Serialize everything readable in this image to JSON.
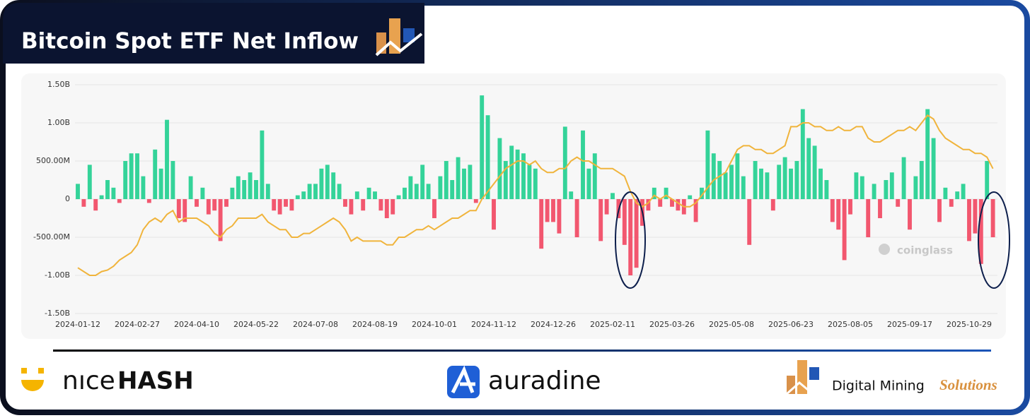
{
  "chart_data": {
    "type": "bar",
    "title": "Bitcoin Spot ETF Net Inflow",
    "watermark": "coinglass",
    "categories": [
      "2024-01-12",
      null,
      null,
      null,
      null,
      null,
      null,
      null,
      null,
      null,
      "2024-02-27",
      null,
      null,
      null,
      null,
      null,
      null,
      null,
      null,
      null,
      "2024-04-10",
      null,
      null,
      null,
      null,
      null,
      null,
      null,
      null,
      null,
      "2024-05-22",
      null,
      null,
      null,
      null,
      null,
      null,
      null,
      null,
      null,
      "2024-07-08",
      null,
      null,
      null,
      null,
      null,
      null,
      null,
      null,
      null,
      "2024-08-19",
      null,
      null,
      null,
      null,
      null,
      null,
      null,
      null,
      null,
      "2024-10-01",
      null,
      null,
      null,
      null,
      null,
      null,
      null,
      null,
      null,
      "2024-11-12",
      null,
      null,
      null,
      null,
      null,
      null,
      null,
      null,
      null,
      "2024-12-26",
      null,
      null,
      null,
      null,
      null,
      null,
      null,
      null,
      null,
      "2025-02-11",
      null,
      null,
      null,
      null,
      null,
      null,
      null,
      null,
      null,
      "2025-03-26",
      null,
      null,
      null,
      null,
      null,
      null,
      null,
      null,
      null,
      "2025-05-08",
      null,
      null,
      null,
      null,
      null,
      null,
      null,
      null,
      null,
      "2025-06-23",
      null,
      null,
      null,
      null,
      null,
      null,
      null,
      null,
      null,
      "2025-08-05",
      null,
      null,
      null,
      null,
      null,
      null,
      null,
      null,
      null,
      "2025-09-17",
      null,
      null,
      null,
      null,
      null,
      null,
      null,
      null,
      null,
      "2025-10-29",
      null,
      null,
      null,
      null
    ],
    "series": [
      {
        "type": "bar",
        "color": "#34d399",
        "negative_color": "#f2576f",
        "values": [
          200000000,
          -100000000,
          450000000,
          -150000000,
          50000000,
          250000000,
          150000000,
          -50000000,
          500000000,
          600000000,
          600000000,
          300000000,
          -50000000,
          650000000,
          400000000,
          1040000000,
          500000000,
          -250000000,
          -300000000,
          300000000,
          -100000000,
          150000000,
          -200000000,
          -150000000,
          -550000000,
          -100000000,
          150000000,
          300000000,
          250000000,
          350000000,
          250000000,
          900000000,
          200000000,
          -150000000,
          -200000000,
          -100000000,
          -150000000,
          50000000,
          100000000,
          200000000,
          200000000,
          400000000,
          450000000,
          350000000,
          200000000,
          -100000000,
          -200000000,
          100000000,
          -150000000,
          150000000,
          100000000,
          -150000000,
          -250000000,
          -200000000,
          50000000,
          150000000,
          300000000,
          200000000,
          450000000,
          200000000,
          -250000000,
          300000000,
          500000000,
          250000000,
          550000000,
          400000000,
          450000000,
          -50000000,
          1360000000,
          1100000000,
          -400000000,
          800000000,
          500000000,
          700000000,
          650000000,
          600000000,
          450000000,
          400000000,
          -650000000,
          -300000000,
          -300000000,
          -450000000,
          950000000,
          100000000,
          -500000000,
          900000000,
          400000000,
          600000000,
          -550000000,
          -200000000,
          80000000,
          -250000000,
          -600000000,
          -1000000000,
          -900000000,
          -350000000,
          -150000000,
          150000000,
          -100000000,
          150000000,
          -100000000,
          -150000000,
          -200000000,
          50000000,
          -300000000,
          150000000,
          900000000,
          600000000,
          500000000,
          350000000,
          450000000,
          600000000,
          300000000,
          -600000000,
          500000000,
          400000000,
          350000000,
          -150000000,
          450000000,
          550000000,
          400000000,
          500000000,
          1180000000,
          800000000,
          700000000,
          400000000,
          250000000,
          -300000000,
          -400000000,
          -800000000,
          -200000000,
          350000000,
          300000000,
          -500000000,
          200000000,
          -250000000,
          250000000,
          350000000,
          -100000000,
          550000000,
          -400000000,
          300000000,
          500000000,
          1180000000,
          800000000,
          -300000000,
          150000000,
          -100000000,
          100000000,
          200000000,
          -550000000,
          -450000000,
          -850000000,
          500000000,
          -500000000
        ]
      },
      {
        "type": "line",
        "color": "#f0b43c",
        "values": [
          -900000000,
          -950000000,
          -1000000000,
          -1000000000,
          -950000000,
          -930000000,
          -880000000,
          -800000000,
          -750000000,
          -700000000,
          -600000000,
          -400000000,
          -300000000,
          -250000000,
          -300000000,
          -200000000,
          -150000000,
          -300000000,
          -250000000,
          -250000000,
          -250000000,
          -300000000,
          -350000000,
          -450000000,
          -500000000,
          -400000000,
          -350000000,
          -250000000,
          -250000000,
          -250000000,
          -250000000,
          -200000000,
          -300000000,
          -350000000,
          -400000000,
          -400000000,
          -500000000,
          -500000000,
          -450000000,
          -450000000,
          -400000000,
          -350000000,
          -300000000,
          -250000000,
          -300000000,
          -400000000,
          -550000000,
          -500000000,
          -550000000,
          -550000000,
          -550000000,
          -550000000,
          -600000000,
          -600000000,
          -500000000,
          -500000000,
          -450000000,
          -400000000,
          -400000000,
          -350000000,
          -400000000,
          -350000000,
          -300000000,
          -250000000,
          -250000000,
          -200000000,
          -150000000,
          -150000000,
          0,
          100000000,
          200000000,
          300000000,
          400000000,
          450000000,
          500000000,
          500000000,
          450000000,
          500000000,
          400000000,
          350000000,
          350000000,
          400000000,
          400000000,
          500000000,
          550000000,
          500000000,
          500000000,
          450000000,
          400000000,
          400000000,
          400000000,
          350000000,
          300000000,
          100000000,
          -50000000,
          -100000000,
          -50000000,
          50000000,
          0,
          50000000,
          0,
          -50000000,
          -100000000,
          -100000000,
          -50000000,
          50000000,
          150000000,
          250000000,
          300000000,
          350000000,
          500000000,
          650000000,
          700000000,
          700000000,
          650000000,
          650000000,
          600000000,
          600000000,
          650000000,
          700000000,
          950000000,
          950000000,
          1000000000,
          1000000000,
          950000000,
          950000000,
          900000000,
          900000000,
          950000000,
          900000000,
          900000000,
          950000000,
          950000000,
          800000000,
          750000000,
          750000000,
          800000000,
          850000000,
          900000000,
          900000000,
          950000000,
          900000000,
          1000000000,
          1100000000,
          1050000000,
          900000000,
          800000000,
          750000000,
          700000000,
          650000000,
          650000000,
          600000000,
          600000000,
          550000000,
          400000000
        ]
      }
    ],
    "ylim": [
      -1500000000,
      1500000000
    ],
    "yticks": [
      {
        "value": -1500000000,
        "label": "-1.50B"
      },
      {
        "value": -1000000000,
        "label": "-1.00B"
      },
      {
        "value": -500000000,
        "label": "-500.00M"
      },
      0,
      {
        "value": 500000000,
        "label": "500.00M"
      },
      {
        "value": 1000000000,
        "label": "1.00B"
      },
      {
        "value": 1500000000,
        "label": "1.50B"
      }
    ],
    "grid": true
  },
  "footer": {
    "nicehash": [
      "nıce",
      "HASH"
    ],
    "auradine": "auradine",
    "dms": [
      "Digital Mining",
      "Solutions"
    ]
  }
}
